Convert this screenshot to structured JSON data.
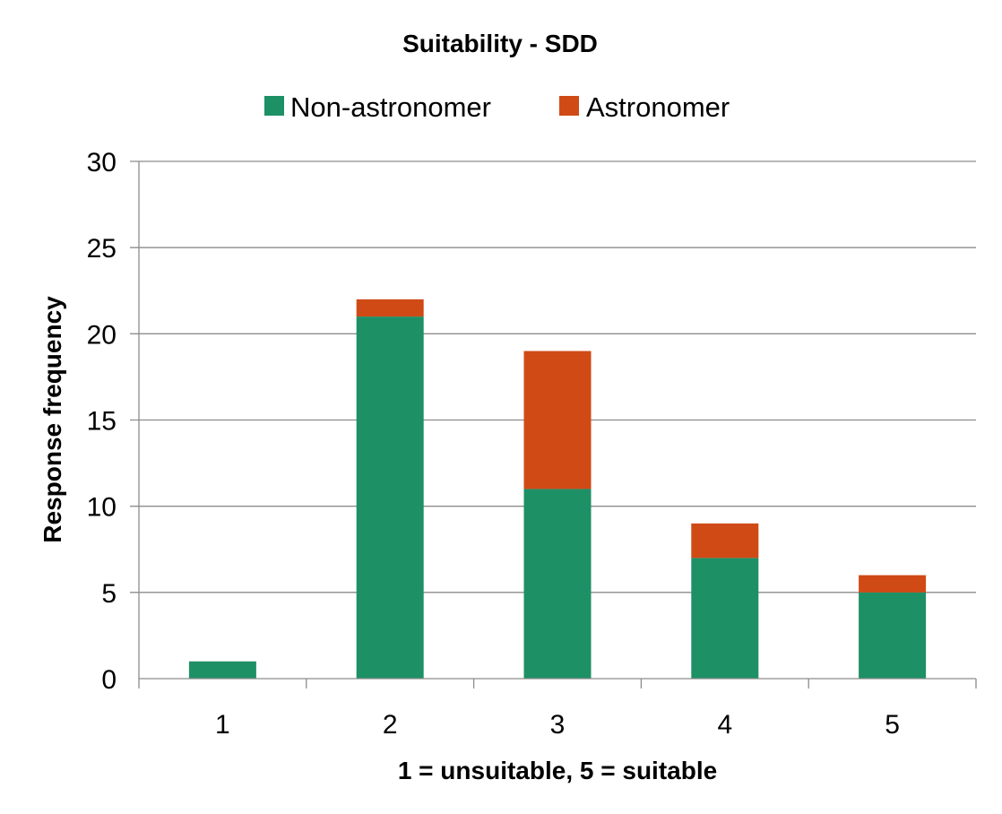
{
  "chart_data": {
    "type": "bar",
    "stacked": true,
    "title": "Suitability - SDD",
    "xlabel": "1 = unsuitable, 5 = suitable",
    "ylabel": "Response frequency",
    "categories": [
      "1",
      "2",
      "3",
      "4",
      "5"
    ],
    "series": [
      {
        "name": "Non-astronomer",
        "values": [
          1,
          21,
          11,
          7,
          5
        ],
        "color": "#1e9066"
      },
      {
        "name": "Astronomer",
        "values": [
          0,
          1,
          8,
          2,
          1
        ],
        "color": "#d04a16"
      }
    ],
    "ylim": [
      0,
      30
    ],
    "yticks": [
      0,
      5,
      10,
      15,
      20,
      25,
      30
    ],
    "ytick_labels": [
      "0",
      "5",
      "10",
      "15",
      "20",
      "25",
      "30"
    ],
    "grid": true,
    "legend_position": "top"
  },
  "colors": {
    "gridline": "#8c8c8c",
    "axis": "#8c8c8c",
    "text": "#000000"
  }
}
